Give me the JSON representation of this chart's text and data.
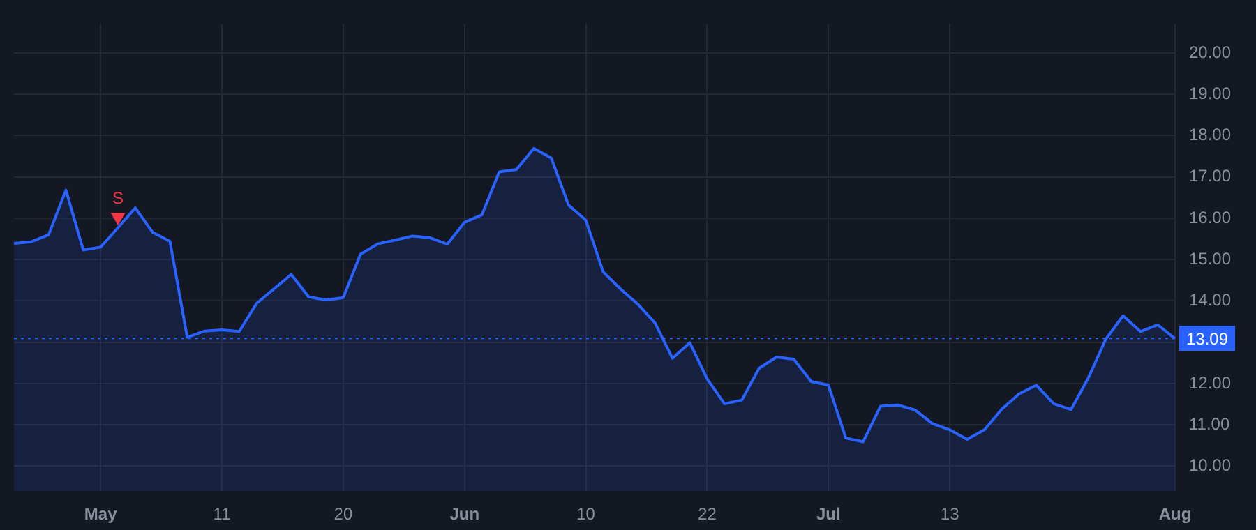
{
  "chart_data": {
    "type": "area",
    "categories": [
      null,
      null,
      null,
      null,
      null,
      "May",
      null,
      null,
      null,
      null,
      null,
      null,
      "11",
      null,
      null,
      null,
      null,
      null,
      null,
      "20",
      null,
      null,
      null,
      null,
      null,
      null,
      "Jun",
      null,
      null,
      null,
      null,
      null,
      null,
      "10",
      null,
      null,
      null,
      null,
      null,
      null,
      "22",
      null,
      null,
      null,
      null,
      null,
      null,
      "Jul",
      null,
      null,
      null,
      null,
      null,
      null,
      "13",
      null,
      null,
      null,
      null,
      null,
      null,
      null,
      null,
      null,
      null,
      null,
      null,
      "Aug"
    ],
    "series": [
      {
        "type": "area",
        "color": "#2962ff",
        "values": [
          15.39,
          15.43,
          15.6,
          16.68,
          15.23,
          15.3,
          15.77,
          16.25,
          15.66,
          15.44,
          13.12,
          13.27,
          13.3,
          13.26,
          13.94,
          14.29,
          14.64,
          14.1,
          14.02,
          14.08,
          15.13,
          15.38,
          15.47,
          15.57,
          15.53,
          15.37,
          15.9,
          16.08,
          17.12,
          17.18,
          17.69,
          17.46,
          16.32,
          15.95,
          14.7,
          14.29,
          13.92,
          13.46,
          12.61,
          12.99,
          12.11,
          11.51,
          11.6,
          12.37,
          12.64,
          12.59,
          12.05,
          11.96,
          10.68,
          10.59,
          11.45,
          11.48,
          11.36,
          11.03,
          10.88,
          10.65,
          10.88,
          11.38,
          11.75,
          11.96,
          11.51,
          11.37,
          12.14,
          13.07,
          13.64,
          13.26,
          13.42,
          13.09
        ]
      },
      {
        "type": "scatter",
        "name": "S",
        "color": "#f23645",
        "marker": "triangle",
        "values": [
          null,
          null,
          null,
          null,
          null,
          null,
          16.03,
          null,
          null,
          null,
          null,
          null,
          null,
          null,
          null,
          null,
          null,
          null,
          null,
          null,
          null,
          null,
          null,
          null,
          null,
          null,
          null,
          null,
          null,
          null,
          null,
          null,
          null,
          null,
          null,
          null,
          null,
          null,
          null,
          null,
          null,
          null,
          null,
          null,
          null,
          null,
          null,
          null,
          null,
          null,
          null,
          null,
          null,
          null,
          null,
          null,
          null,
          null,
          null,
          null,
          null,
          null,
          null,
          null,
          null,
          null,
          null,
          null
        ]
      }
    ],
    "ylim": [
      9.4,
      20.7
    ],
    "yticks": [
      {
        "value": 10,
        "label": "10.00"
      },
      {
        "value": 11,
        "label": "11.00"
      },
      {
        "value": 12,
        "label": "12.00"
      },
      {
        "value": 13,
        "label": null
      },
      {
        "value": 14,
        "label": "14.00"
      },
      {
        "value": 15,
        "label": "15.00"
      },
      {
        "value": 16,
        "label": "16.00"
      },
      {
        "value": 17,
        "label": "17.00"
      },
      {
        "value": 18,
        "label": "18.00"
      },
      {
        "value": 19,
        "label": "19.00"
      },
      {
        "value": 20,
        "label": "20.00"
      }
    ],
    "ref_lines": [
      {
        "axis": "y",
        "value": 13.09,
        "label": "13.09",
        "color": "#2962ff",
        "line_style": "dotted"
      }
    ],
    "grid": true,
    "legend": false
  }
}
